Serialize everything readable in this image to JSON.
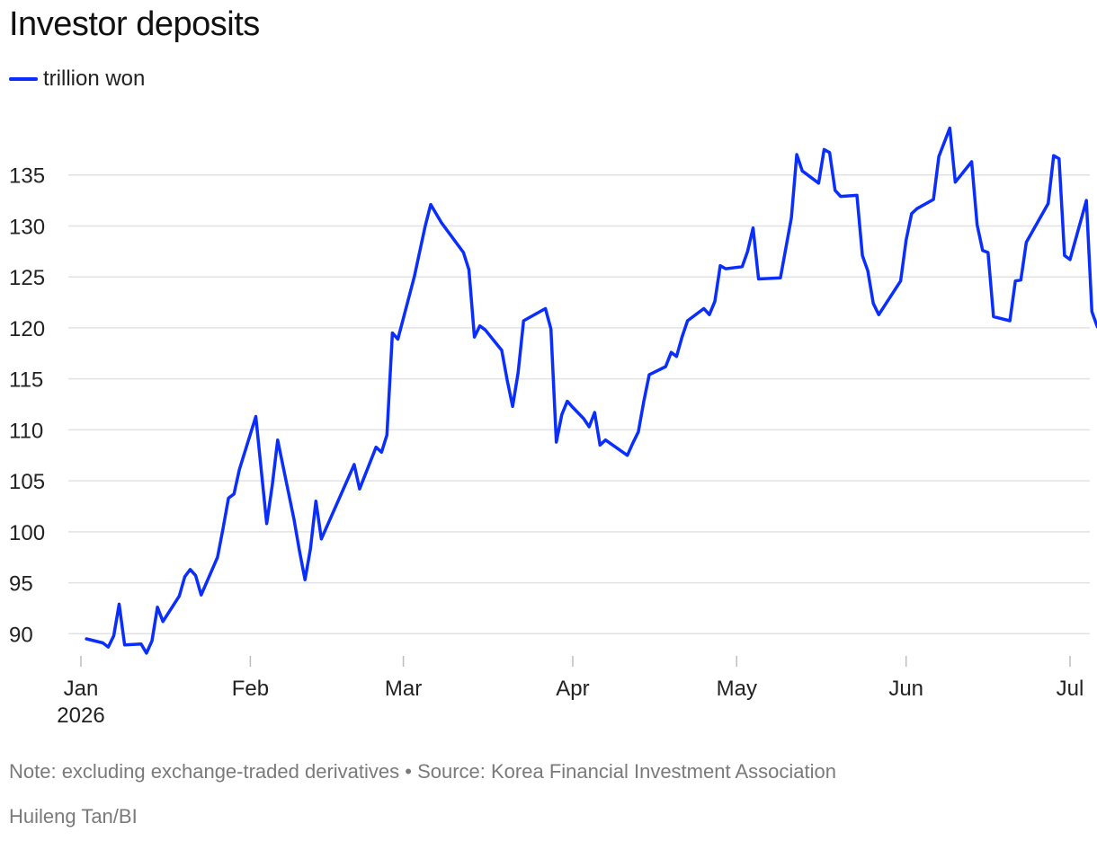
{
  "header": {
    "title": "Investor deposits"
  },
  "legend": {
    "label": "trillion won",
    "color": "#0a2eff"
  },
  "footer": {
    "note": "Note: excluding exchange-traded derivatives • Source: Korea Financial Investment Association",
    "credit": "Huileng Tan/BI"
  },
  "chart_data": {
    "type": "line",
    "title": "Investor deposits",
    "xlabel": "",
    "ylabel": "",
    "grid": true,
    "legend_placement": "top-left",
    "ylim": [
      88,
      140
    ],
    "y_ticks": [
      90,
      95,
      100,
      105,
      110,
      115,
      120,
      125,
      130,
      135
    ],
    "x_range": [
      "2026-01-01",
      "2026-07-01"
    ],
    "x_ticks": [
      {
        "date": "2026-01-01",
        "label": "Jan",
        "sublabel": "2026"
      },
      {
        "date": "2026-02-01",
        "label": "Feb"
      },
      {
        "date": "2026-03-01",
        "label": "Mar"
      },
      {
        "date": "2026-04-01",
        "label": "Apr"
      },
      {
        "date": "2026-05-01",
        "label": "May"
      },
      {
        "date": "2026-06-01",
        "label": "Jun"
      },
      {
        "date": "2026-07-01",
        "label": "Jul"
      }
    ],
    "series": [
      {
        "name": "trillion won",
        "color": "#0a2eff",
        "points": [
          [
            "2026-01-02",
            89.5
          ],
          [
            "2026-01-05",
            89.1
          ],
          [
            "2026-01-06",
            88.7
          ],
          [
            "2026-01-07",
            89.8
          ],
          [
            "2026-01-08",
            92.9
          ],
          [
            "2026-01-09",
            88.9
          ],
          [
            "2026-01-12",
            89.0
          ],
          [
            "2026-01-13",
            88.1
          ],
          [
            "2026-01-14",
            89.3
          ],
          [
            "2026-01-15",
            92.6
          ],
          [
            "2026-01-16",
            91.2
          ],
          [
            "2026-01-19",
            93.7
          ],
          [
            "2026-01-20",
            95.6
          ],
          [
            "2026-01-21",
            96.3
          ],
          [
            "2026-01-22",
            95.7
          ],
          [
            "2026-01-23",
            93.8
          ],
          [
            "2026-01-26",
            97.5
          ],
          [
            "2026-01-27",
            100.3
          ],
          [
            "2026-01-28",
            103.3
          ],
          [
            "2026-01-29",
            103.7
          ],
          [
            "2026-01-30",
            106.1
          ],
          [
            "2026-02-02",
            111.3
          ],
          [
            "2026-02-04",
            100.8
          ],
          [
            "2026-02-05",
            104.5
          ],
          [
            "2026-02-06",
            109.0
          ],
          [
            "2026-02-09",
            101.2
          ],
          [
            "2026-02-10",
            98.1
          ],
          [
            "2026-02-11",
            95.3
          ],
          [
            "2026-02-12",
            98.3
          ],
          [
            "2026-02-13",
            103.0
          ],
          [
            "2026-02-14",
            99.3
          ],
          [
            "2026-02-20",
            106.6
          ],
          [
            "2026-02-21",
            104.2
          ],
          [
            "2026-02-24",
            108.3
          ],
          [
            "2026-02-25",
            107.8
          ],
          [
            "2026-02-26",
            109.5
          ],
          [
            "2026-02-27",
            119.5
          ],
          [
            "2026-02-28",
            118.9
          ],
          [
            "2026-03-03",
            125.0
          ],
          [
            "2026-03-05",
            130.0
          ],
          [
            "2026-03-06",
            132.1
          ],
          [
            "2026-03-08",
            130.3
          ],
          [
            "2026-03-12",
            127.4
          ],
          [
            "2026-03-13",
            125.7
          ],
          [
            "2026-03-14",
            119.1
          ],
          [
            "2026-03-15",
            120.2
          ],
          [
            "2026-03-16",
            119.8
          ],
          [
            "2026-03-19",
            117.8
          ],
          [
            "2026-03-20",
            114.9
          ],
          [
            "2026-03-21",
            112.3
          ],
          [
            "2026-03-22",
            115.6
          ],
          [
            "2026-03-23",
            120.7
          ],
          [
            "2026-03-27",
            121.9
          ],
          [
            "2026-03-28",
            119.9
          ],
          [
            "2026-03-29",
            108.8
          ],
          [
            "2026-03-30",
            111.5
          ],
          [
            "2026-03-31",
            112.8
          ],
          [
            "2026-04-01",
            112.2
          ],
          [
            "2026-04-03",
            111.1
          ],
          [
            "2026-04-04",
            110.3
          ],
          [
            "2026-04-05",
            111.7
          ],
          [
            "2026-04-06",
            108.5
          ],
          [
            "2026-04-07",
            109.0
          ],
          [
            "2026-04-11",
            107.5
          ],
          [
            "2026-04-12",
            108.7
          ],
          [
            "2026-04-13",
            109.8
          ],
          [
            "2026-04-14",
            112.8
          ],
          [
            "2026-04-15",
            115.4
          ],
          [
            "2026-04-18",
            116.2
          ],
          [
            "2026-04-19",
            117.6
          ],
          [
            "2026-04-20",
            117.2
          ],
          [
            "2026-04-21",
            119.1
          ],
          [
            "2026-04-22",
            120.7
          ],
          [
            "2026-04-25",
            121.9
          ],
          [
            "2026-04-26",
            121.3
          ],
          [
            "2026-04-27",
            122.6
          ],
          [
            "2026-04-28",
            126.1
          ],
          [
            "2026-04-29",
            125.8
          ],
          [
            "2026-05-02",
            126.0
          ],
          [
            "2026-05-03",
            127.5
          ],
          [
            "2026-05-04",
            129.8
          ],
          [
            "2026-05-05",
            124.8
          ],
          [
            "2026-05-09",
            124.9
          ],
          [
            "2026-05-11",
            130.8
          ],
          [
            "2026-05-12",
            137.0
          ],
          [
            "2026-05-13",
            135.4
          ],
          [
            "2026-05-16",
            134.2
          ],
          [
            "2026-05-17",
            137.5
          ],
          [
            "2026-05-18",
            137.2
          ],
          [
            "2026-05-19",
            133.5
          ],
          [
            "2026-05-20",
            132.9
          ],
          [
            "2026-05-23",
            133.0
          ],
          [
            "2026-05-24",
            127.1
          ],
          [
            "2026-05-25",
            125.6
          ],
          [
            "2026-05-26",
            122.4
          ],
          [
            "2026-05-27",
            121.3
          ],
          [
            "2026-05-31",
            124.6
          ],
          [
            "2026-06-01",
            128.6
          ],
          [
            "2026-06-02",
            131.2
          ],
          [
            "2026-06-03",
            131.7
          ],
          [
            "2026-06-06",
            132.6
          ],
          [
            "2026-06-07",
            136.8
          ],
          [
            "2026-06-09",
            139.6
          ],
          [
            "2026-06-10",
            134.3
          ],
          [
            "2026-06-13",
            136.3
          ],
          [
            "2026-06-14",
            130.1
          ],
          [
            "2026-06-15",
            127.6
          ],
          [
            "2026-06-16",
            127.4
          ],
          [
            "2026-06-17",
            121.1
          ],
          [
            "2026-06-20",
            120.7
          ],
          [
            "2026-06-21",
            124.6
          ],
          [
            "2026-06-22",
            124.7
          ],
          [
            "2026-06-23",
            128.4
          ],
          [
            "2026-06-27",
            132.2
          ],
          [
            "2026-06-28",
            136.9
          ],
          [
            "2026-06-29",
            136.6
          ],
          [
            "2026-06-30",
            127.1
          ],
          [
            "2026-07-01",
            126.7
          ],
          [
            "2026-07-04",
            132.5
          ],
          [
            "2026-07-05",
            121.6
          ],
          [
            "2026-07-06",
            120.1
          ]
        ]
      }
    ]
  }
}
